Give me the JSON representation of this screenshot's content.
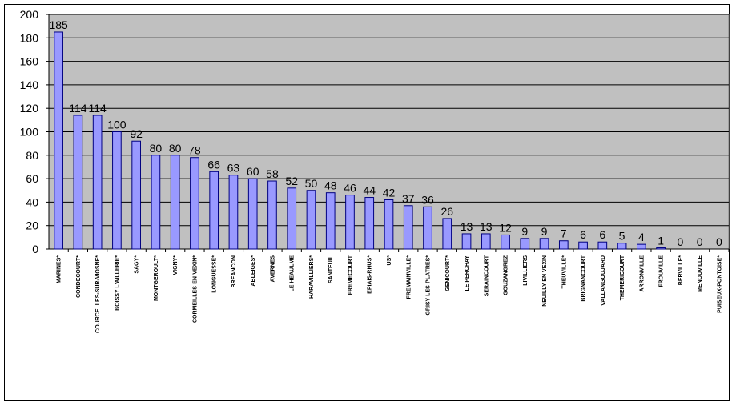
{
  "colors": {
    "plot_background": "#c0c0c0",
    "bar_fill": "#9999ff",
    "bar_stroke": "#000080",
    "gridline": "#000000"
  },
  "chart_data": {
    "type": "bar",
    "title": "",
    "xlabel": "",
    "ylabel": "",
    "ylim": [
      0,
      200
    ],
    "yticks": [
      0,
      20,
      40,
      60,
      80,
      100,
      120,
      140,
      160,
      180,
      200
    ],
    "grid": true,
    "legend": "none",
    "categories": [
      "MARINES*",
      "CONDECOURT*",
      "COURCELLES-SUR-VIOSNE*",
      "BOISSY L'AILLERIE*",
      "SAGY*",
      "MONTGEROULT*",
      "VIGNY*",
      "CORMEILLES-EN-VEXIN*",
      "LONGUESSE*",
      "BREANCON",
      "ABLEIGES*",
      "AVERNES",
      "LE HEAULME",
      "HARAVILLIERS*",
      "SANTEUIL",
      "FREMECOURT",
      "EPIAIS-RHUS*",
      "US*",
      "FREMAINVILLE*",
      "GRISY-LES-PLATRES*",
      "GENICOURT*",
      "LE PERCHAY",
      "SERAINCOURT",
      "GOUZANGREZ",
      "LIVILLIERS",
      "NEUILLY EN VEXIN",
      "THEUVILLE*",
      "BRIGNANCOURT",
      "VALLANGOUJARD",
      "THEMERICOURT",
      "ARRONVILLE",
      "FROUVILLE",
      "BERVILLE*",
      "MENOUVILLE",
      "PUISEUX-PONTOISE*"
    ],
    "values": [
      185,
      114,
      114,
      100,
      92,
      80,
      80,
      78,
      66,
      63,
      60,
      58,
      52,
      50,
      48,
      46,
      44,
      42,
      37,
      36,
      26,
      13,
      13,
      12,
      9,
      9,
      7,
      6,
      6,
      5,
      4,
      1,
      0,
      0,
      0
    ]
  }
}
